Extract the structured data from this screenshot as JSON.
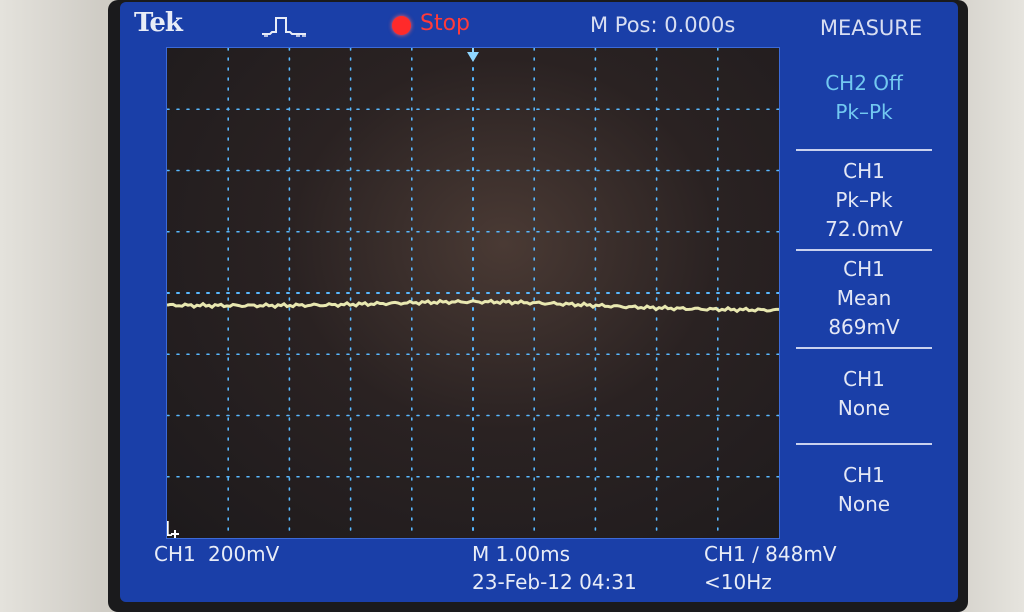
{
  "header": {
    "brand": "Tek",
    "run_state": "Stop",
    "horizontal_position": "M Pos: 0.000s",
    "menu_title": "MEASURE"
  },
  "measurements": [
    {
      "line1": "CH2 Off",
      "line2": "Pk–Pk",
      "line3": ""
    },
    {
      "line1": "CH1",
      "line2": "Pk–Pk",
      "line3": "72.0mV"
    },
    {
      "line1": "CH1",
      "line2": "Mean",
      "line3": "869mV"
    },
    {
      "line1": "CH1",
      "line2": "None",
      "line3": ""
    },
    {
      "line1": "CH1",
      "line2": "None",
      "line3": ""
    }
  ],
  "footer": {
    "channel_label": "CH1",
    "volts_per_div": "200mV",
    "time_per_div": "M 1.00ms",
    "datetime": "23-Feb-12 04:31",
    "trigger": "CH1 ∕ 848mV",
    "trigger_freq": "<10Hz"
  },
  "display": {
    "ground_marker": "1",
    "trace_color": "#f2f2b8",
    "grid_color": "#58b8ff",
    "stop_color": "#ff2a2a"
  }
}
